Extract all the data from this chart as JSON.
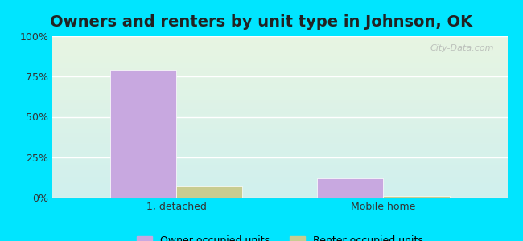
{
  "title": "Owners and renters by unit type in Johnson, OK",
  "categories": [
    "1, detached",
    "Mobile home"
  ],
  "owner_values": [
    79,
    12
  ],
  "renter_values": [
    7,
    1
  ],
  "owner_color": "#c8a8e0",
  "renter_color": "#c8cc90",
  "ylim": [
    0,
    100
  ],
  "yticks": [
    0,
    25,
    50,
    75,
    100
  ],
  "ytick_labels": [
    "0%",
    "25%",
    "50%",
    "75%",
    "100%"
  ],
  "legend_owner": "Owner occupied units",
  "legend_renter": "Renter occupied units",
  "background_top": "#e8f5e2",
  "background_bottom": "#d0f0ee",
  "outer_bg": "#00e5ff",
  "bar_width": 0.32,
  "title_fontsize": 14,
  "watermark": "City-Data.com"
}
